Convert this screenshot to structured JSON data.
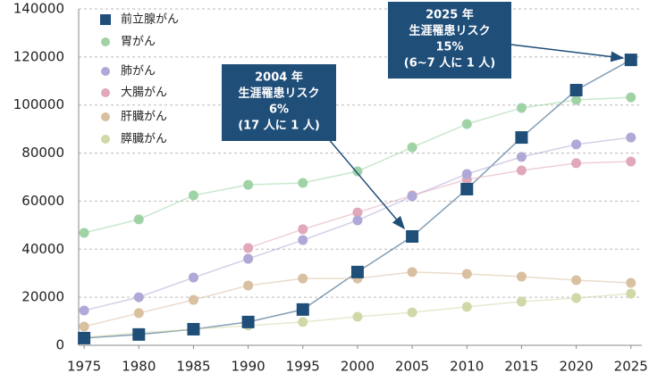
{
  "chart_data": {
    "type": "line",
    "x": [
      1975,
      1980,
      1985,
      1990,
      1995,
      2000,
      2005,
      2010,
      2015,
      2020,
      2025
    ],
    "xlim": [
      1974.5,
      2026
    ],
    "xticks": [
      1975,
      1980,
      1985,
      1990,
      1995,
      2000,
      2005,
      2010,
      2015,
      2020,
      2025
    ],
    "ylim": [
      0,
      140000
    ],
    "yticks": [
      0,
      20000,
      40000,
      60000,
      80000,
      100000,
      120000,
      140000
    ],
    "grid": true,
    "legend": "top-left",
    "series": [
      {
        "name": "前立腺がん",
        "color": "#1f4e79",
        "marker": "square",
        "values": [
          3000,
          4500,
          6700,
          9700,
          14900,
          30500,
          45300,
          65000,
          86500,
          106200,
          118800
        ]
      },
      {
        "name": "胃がん",
        "color": "#9fd3a6",
        "values": [
          46800,
          52400,
          62400,
          66800,
          67600,
          72400,
          82400,
          92100,
          98800,
          102100,
          103200
        ]
      },
      {
        "name": "肺がん",
        "color": "#b0a8d6",
        "values": [
          14500,
          20000,
          28200,
          36000,
          43800,
          52000,
          62000,
          71300,
          78400,
          83600,
          86500
        ]
      },
      {
        "name": "大腸がん",
        "color": "#e0a8b8",
        "values": [
          null,
          null,
          null,
          40500,
          48300,
          55300,
          62400,
          69000,
          72800,
          75800,
          76500
        ]
      },
      {
        "name": "肝臓がん",
        "color": "#d8c0a0",
        "values": [
          7800,
          13400,
          18900,
          24900,
          27800,
          27800,
          30500,
          29700,
          28600,
          27100,
          26000
        ]
      },
      {
        "name": "膵臓がん",
        "color": "#d0d8a8",
        "values": [
          3300,
          5200,
          6700,
          8200,
          9700,
          11900,
          13700,
          16000,
          18200,
          19700,
          21500
        ]
      }
    ],
    "annotations": [
      {
        "lines": [
          "2004 年",
          "生涯罹患リスク",
          "6%",
          "(17 人に 1 人)"
        ]
      },
      {
        "lines": [
          "2025 年",
          "生涯罹患リスク",
          "15%",
          "(6~7 人に 1 人)"
        ]
      }
    ]
  }
}
